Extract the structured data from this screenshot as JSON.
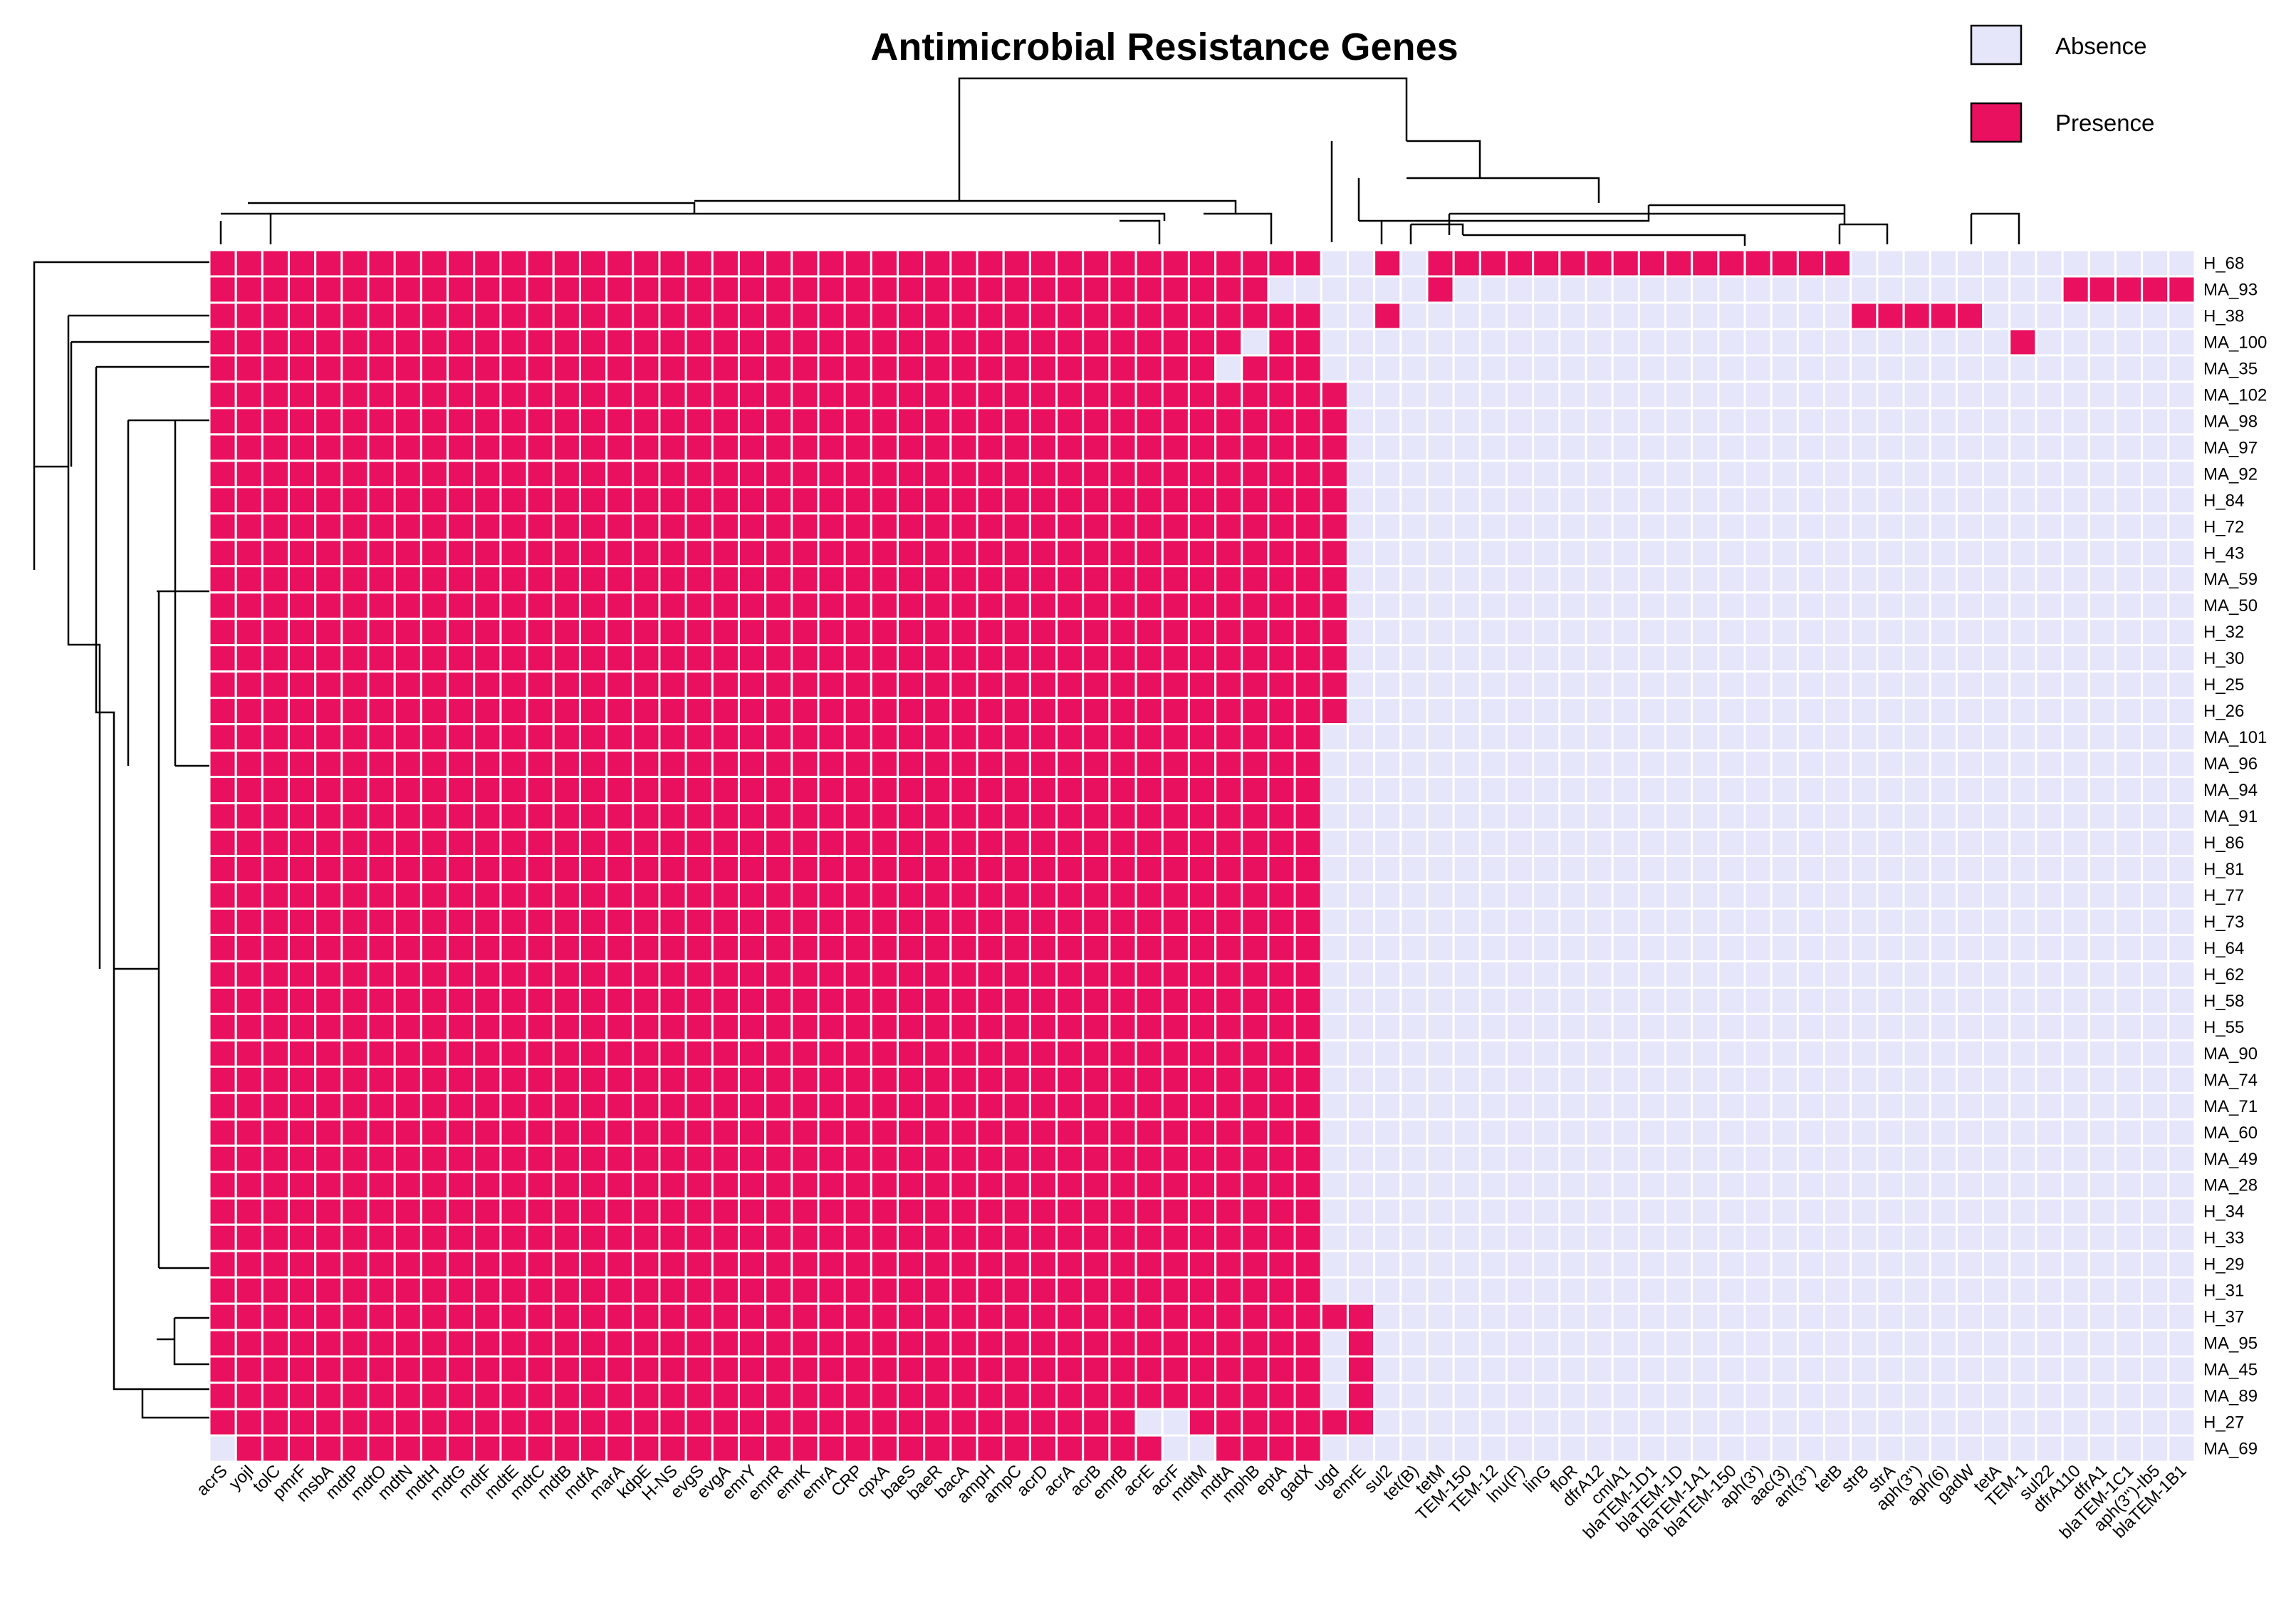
{
  "chart_data": {
    "type": "heatmap",
    "title": "Antimicrobial Resistance Genes",
    "legend": {
      "position": "top-right",
      "entries": [
        {
          "label": "Absence",
          "value": 0,
          "color": "#e6e6fa"
        },
        {
          "label": "Presence",
          "value": 1,
          "color": "#e8105f"
        }
      ]
    },
    "columns": [
      "acrS",
      "yojI",
      "tolC",
      "pmrF",
      "msbA",
      "mdtP",
      "mdtO",
      "mdtN",
      "mdtH",
      "mdtG",
      "mdtF",
      "mdtE",
      "mdtC",
      "mdtB",
      "mdfA",
      "marA",
      "kdpE",
      "H-NS",
      "evgS",
      "evgA",
      "emrY",
      "emrR",
      "emrK",
      "emrA",
      "CRP",
      "cpxA",
      "baeS",
      "baeR",
      "bacA",
      "ampH",
      "ampC",
      "acrD",
      "acrA",
      "acrB",
      "emrB",
      "acrE",
      "acrF",
      "mdtM",
      "mdtA",
      "mphB",
      "eptA",
      "gadX",
      "ugd",
      "emrE",
      "sul2",
      "tet(B)",
      "tetM",
      "TEM-150",
      "TEM-12",
      "lnu(F)",
      "linG",
      "floR",
      "dfrA12",
      "cmlA1",
      "blaTEM-1D1",
      "blaTEM-1D",
      "blaTEM-1A1",
      "blaTEM-150",
      "aph(3')",
      "aac(3)",
      "ant(3'')",
      "tetB",
      "strB",
      "strA",
      "aph(3'')",
      "aph(6)",
      "gadW",
      "tetA",
      "TEM-1",
      "sul22",
      "dfrA110",
      "dfrA1",
      "blaTEM-1C1",
      "aph(3'')-Ib5",
      "blaTEM-1B1"
    ],
    "rows": [
      "H_68",
      "MA_93",
      "H_38",
      "MA_100",
      "MA_35",
      "MA_102",
      "MA_98",
      "MA_97",
      "MA_92",
      "H_84",
      "H_72",
      "H_43",
      "MA_59",
      "MA_50",
      "H_32",
      "H_30",
      "H_25",
      "H_26",
      "MA_101",
      "MA_96",
      "MA_94",
      "MA_91",
      "H_86",
      "H_81",
      "H_77",
      "H_73",
      "H_64",
      "H_62",
      "H_58",
      "H_55",
      "MA_90",
      "MA_74",
      "MA_71",
      "MA_60",
      "MA_49",
      "MA_28",
      "H_34",
      "H_33",
      "H_29",
      "H_31",
      "H_37",
      "MA_95",
      "MA_45",
      "MA_89",
      "H_27",
      "MA_69"
    ],
    "matrix": [
      "111111111111111111111111111111111111111111001011111111111111110000000000000",
      "111111111111111111111111111111111111111100000010000000000000000000000011111",
      "111111111111111111111111111111111111111111001000000000000000001111100000000",
      "111111111111111111111111111111111111111011000000000000000000000000001000000",
      "111111111111111111111111111111111111110111000000000000000000000000000000000",
      "111111111111111111111111111111111111111111100000000000000000000000000000000",
      "111111111111111111111111111111111111111111100000000000000000000000000000000",
      "111111111111111111111111111111111111111111100000000000000000000000000000000",
      "111111111111111111111111111111111111111111100000000000000000000000000000000",
      "111111111111111111111111111111111111111111100000000000000000000000000000000",
      "111111111111111111111111111111111111111111100000000000000000000000000000000",
      "111111111111111111111111111111111111111111100000000000000000000000000000000",
      "111111111111111111111111111111111111111111100000000000000000000000000000000",
      "111111111111111111111111111111111111111111100000000000000000000000000000000",
      "111111111111111111111111111111111111111111100000000000000000000000000000000",
      "111111111111111111111111111111111111111111100000000000000000000000000000000",
      "111111111111111111111111111111111111111111100000000000000000000000000000000",
      "111111111111111111111111111111111111111111100000000000000000000000000000000",
      "111111111111111111111111111111111111111111000000000000000000000000000000000",
      "111111111111111111111111111111111111111111000000000000000000000000000000000",
      "111111111111111111111111111111111111111111000000000000000000000000000000000",
      "111111111111111111111111111111111111111111000000000000000000000000000000000",
      "111111111111111111111111111111111111111111000000000000000000000000000000000",
      "111111111111111111111111111111111111111111000000000000000000000000000000000",
      "111111111111111111111111111111111111111111000000000000000000000000000000000",
      "111111111111111111111111111111111111111111000000000000000000000000000000000",
      "111111111111111111111111111111111111111111000000000000000000000000000000000",
      "111111111111111111111111111111111111111111000000000000000000000000000000000",
      "111111111111111111111111111111111111111111000000000000000000000000000000000",
      "111111111111111111111111111111111111111111000000000000000000000000000000000",
      "111111111111111111111111111111111111111111000000000000000000000000000000000",
      "111111111111111111111111111111111111111111000000000000000000000000000000000",
      "111111111111111111111111111111111111111111000000000000000000000000000000000",
      "111111111111111111111111111111111111111111000000000000000000000000000000000",
      "111111111111111111111111111111111111111111000000000000000000000000000000000",
      "111111111111111111111111111111111111111111000000000000000000000000000000000",
      "111111111111111111111111111111111111111111000000000000000000000000000000000",
      "111111111111111111111111111111111111111111000000000000000000000000000000000",
      "111111111111111111111111111111111111111111000000000000000000000000000000000",
      "111111111111111111111111111111111111111111000000000000000000000000000000000",
      "111111111111111111111111111111111111111111110000000000000000000000000000000",
      "111111111111111111111111111111111111111111010000000000000000000000000000000",
      "111111111111111111111111111111111111111111010000000000000000000000000000000",
      "111111111111111111111111111111111111111111010000000000000000000000000000000",
      "111111111111111111111111111111111110011111110000000000000000000000000000000",
      "011111111111111111111111111111111111001111000000000000000000000000000000000"
    ]
  }
}
